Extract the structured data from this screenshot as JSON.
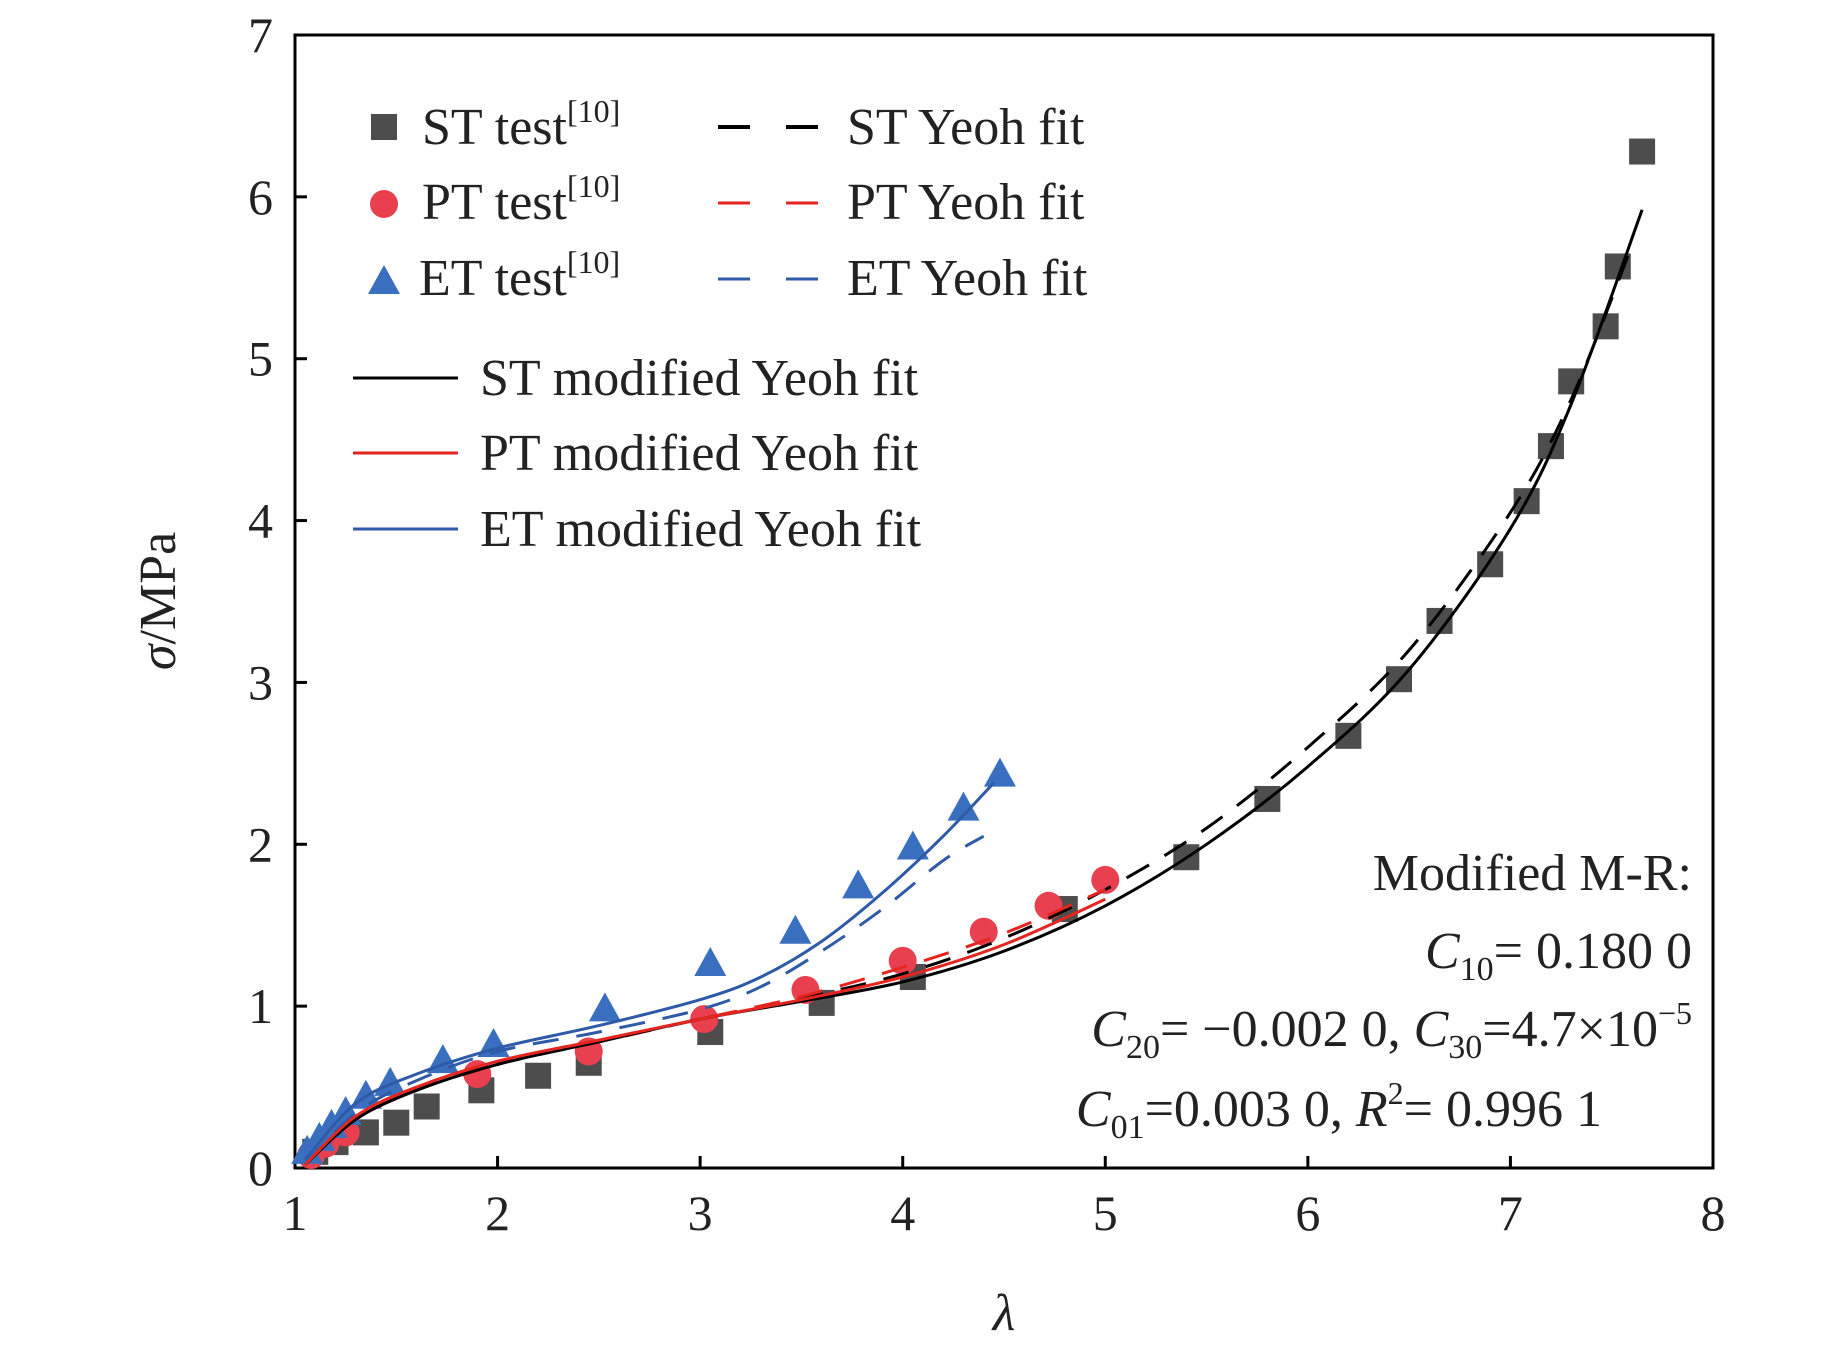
{
  "chart_data": {
    "type": "scatter",
    "title": "",
    "xlabel": "λ",
    "ylabel_symbol": "σ",
    "ylabel_unit": "/MPa",
    "xlim": [
      1,
      8
    ],
    "ylim": [
      0,
      7
    ],
    "xticks": [
      "1",
      "2",
      "3",
      "4",
      "5",
      "6",
      "7",
      "8"
    ],
    "yticks": [
      "0",
      "1",
      "2",
      "3",
      "4",
      "5",
      "6",
      "7"
    ],
    "grid": false,
    "legend_position": "top-left",
    "colors": {
      "ST": "#4d4d4d",
      "PT": "#e8404f",
      "ET": "#3a6fbf",
      "ST_line": "#000000",
      "PT_line": "#e52620",
      "ET_line": "#2f5aa8"
    },
    "legend": {
      "st_test": "ST test",
      "pt_test": "PT test",
      "et_test": "ET test",
      "ref": "[10]",
      "st_yeoh": "ST Yeoh fit",
      "pt_yeoh": "PT Yeoh fit",
      "et_yeoh": "ET Yeoh fit",
      "st_mod": "ST modified Yeoh fit",
      "pt_mod": "PT modified Yeoh fit",
      "et_mod": "ET modified Yeoh fit"
    },
    "annotation": {
      "title": "Modified M-R:",
      "c_symbol": "C",
      "r_symbol": "R",
      "r_sup": "2",
      "c10_sub": "10",
      "c10_value": "=  0.180 0",
      "c20_sub": "20",
      "c20_value": "= −0.002 0, ",
      "c30_sub": "30",
      "c30_value": "=4.7×10",
      "c30_exp": "−5",
      "c01_sub": "01",
      "c01_value": "=0.003 0, ",
      "r2_value": "= 0.996 1"
    },
    "series": [
      {
        "name": "ST test",
        "kind": "marker",
        "marker": "square",
        "color": "#4d4d4d",
        "x": [
          1.1,
          1.2,
          1.35,
          1.5,
          1.65,
          1.92,
          2.2,
          2.45,
          3.05,
          3.6,
          4.05,
          4.8,
          5.4,
          5.8,
          6.2,
          6.45,
          6.65,
          6.9,
          7.08,
          7.2,
          7.3,
          7.47,
          7.53,
          7.65
        ],
        "y": [
          0.1,
          0.16,
          0.22,
          0.28,
          0.38,
          0.48,
          0.57,
          0.65,
          0.84,
          1.02,
          1.18,
          1.6,
          1.92,
          2.28,
          2.67,
          3.02,
          3.38,
          3.73,
          4.12,
          4.46,
          4.86,
          5.2,
          5.57,
          6.28
        ]
      },
      {
        "name": "PT test",
        "kind": "marker",
        "marker": "circle",
        "color": "#e8404f",
        "x": [
          1.08,
          1.15,
          1.25,
          1.9,
          2.45,
          3.02,
          3.52,
          4.0,
          4.4,
          4.72,
          5.0
        ],
        "y": [
          0.08,
          0.15,
          0.22,
          0.58,
          0.72,
          0.92,
          1.1,
          1.28,
          1.46,
          1.62,
          1.78
        ]
      },
      {
        "name": "ET test",
        "kind": "marker",
        "marker": "triangle",
        "color": "#3a6fbf",
        "x": [
          1.06,
          1.12,
          1.18,
          1.25,
          1.35,
          1.47,
          1.73,
          1.98,
          2.53,
          3.05,
          3.47,
          3.78,
          4.05,
          4.3,
          4.48
        ],
        "y": [
          0.1,
          0.18,
          0.26,
          0.34,
          0.44,
          0.52,
          0.66,
          0.76,
          0.98,
          1.26,
          1.46,
          1.74,
          1.98,
          2.22,
          2.43
        ]
      },
      {
        "name": "ST Yeoh fit",
        "kind": "dashed",
        "color": "#000000",
        "x": [
          1.05,
          1.3,
          1.6,
          2.0,
          2.5,
          3.0,
          3.5,
          4.0,
          4.5,
          5.0,
          5.5,
          6.0,
          6.5,
          7.0,
          7.3,
          7.6
        ],
        "y": [
          0.02,
          0.3,
          0.48,
          0.64,
          0.78,
          0.92,
          1.05,
          1.2,
          1.42,
          1.72,
          2.1,
          2.6,
          3.2,
          4.05,
          4.75,
          5.7
        ]
      },
      {
        "name": "PT Yeoh fit",
        "kind": "dashed",
        "color": "#e52620",
        "x": [
          1.05,
          1.3,
          1.6,
          2.0,
          2.5,
          3.0,
          3.5,
          4.0,
          4.5,
          5.0
        ],
        "y": [
          0.02,
          0.3,
          0.48,
          0.65,
          0.78,
          0.92,
          1.06,
          1.24,
          1.45,
          1.72
        ]
      },
      {
        "name": "ET Yeoh fit",
        "kind": "dashed",
        "color": "#2f5aa8",
        "x": [
          1.05,
          1.3,
          1.6,
          2.0,
          2.5,
          3.0,
          3.3,
          3.6,
          3.9,
          4.2,
          4.4
        ],
        "y": [
          0.02,
          0.34,
          0.54,
          0.72,
          0.84,
          0.98,
          1.12,
          1.34,
          1.6,
          1.9,
          2.05
        ]
      },
      {
        "name": "ST modified Yeoh fit",
        "kind": "solid",
        "color": "#000000",
        "x": [
          1.05,
          1.3,
          1.6,
          2.0,
          2.5,
          3.0,
          3.5,
          4.0,
          4.5,
          5.0,
          5.5,
          6.0,
          6.5,
          7.0,
          7.3,
          7.65
        ],
        "y": [
          0.02,
          0.3,
          0.48,
          0.64,
          0.78,
          0.92,
          1.03,
          1.15,
          1.34,
          1.62,
          2.0,
          2.48,
          3.08,
          3.95,
          4.72,
          5.92
        ]
      },
      {
        "name": "PT modified Yeoh fit",
        "kind": "solid",
        "color": "#e52620",
        "x": [
          1.05,
          1.3,
          1.6,
          2.0,
          2.5,
          3.0,
          3.5,
          4.0,
          4.5,
          5.0
        ],
        "y": [
          0.02,
          0.32,
          0.5,
          0.66,
          0.79,
          0.92,
          1.04,
          1.18,
          1.38,
          1.66
        ]
      },
      {
        "name": "ET modified Yeoh fit",
        "kind": "solid",
        "color": "#2f5aa8",
        "x": [
          1.05,
          1.3,
          1.6,
          2.0,
          2.5,
          3.0,
          3.3,
          3.6,
          3.9,
          4.2,
          4.45
        ],
        "y": [
          0.05,
          0.4,
          0.58,
          0.74,
          0.88,
          1.04,
          1.18,
          1.4,
          1.7,
          2.05,
          2.38
        ]
      }
    ]
  }
}
